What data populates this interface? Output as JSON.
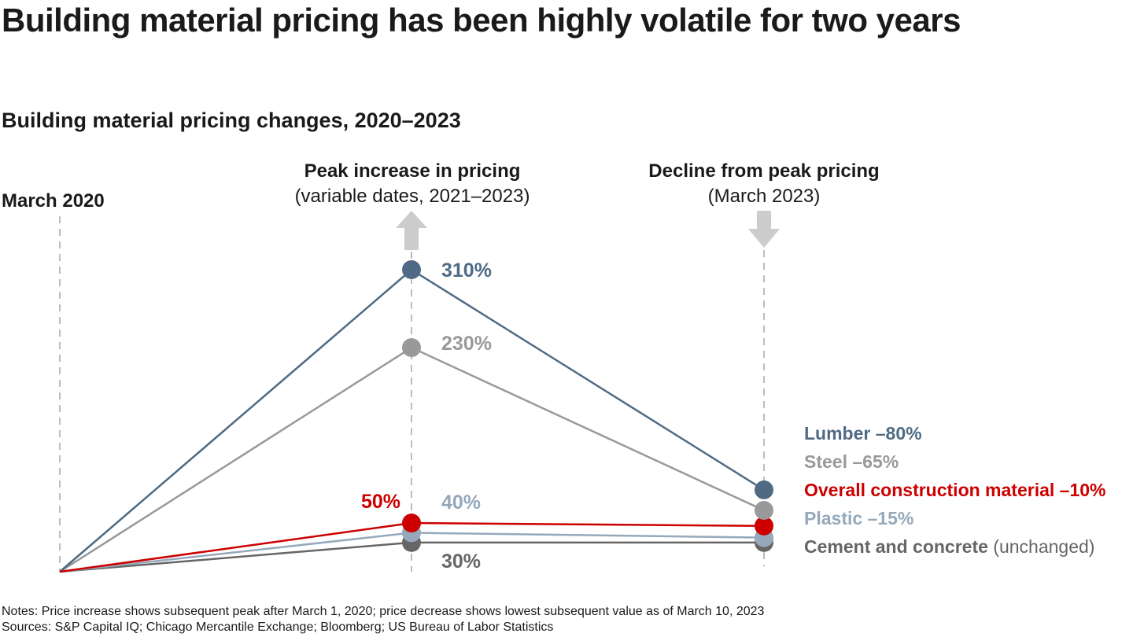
{
  "title": "Building material pricing has been highly volatile for two years",
  "subtitle": "Building material pricing changes, 2020–2023",
  "columns": [
    {
      "heading": "March 2020",
      "sub": ""
    },
    {
      "heading": "Peak increase in pricing",
      "sub": "(variable dates, 2021–2023)"
    },
    {
      "heading": "Decline from peak pricing",
      "sub": "(March 2023)"
    }
  ],
  "notes": "Notes: Price increase shows subsequent peak after March 1, 2020; price decrease shows lowest subsequent value as of March 10, 2023",
  "sources": "Sources: S&P Capital IQ; Chicago Mercantile Exchange; Bloomberg; US Bureau of Labor Statistics",
  "chart_data": {
    "type": "line",
    "title": "Building material pricing changes, 2020–2023",
    "categories": [
      "March 2020",
      "Peak increase in pricing",
      "Decline from peak pricing"
    ],
    "series": [
      {
        "name": "Lumber",
        "color": "#4f6a85",
        "values": [
          0,
          310,
          84
        ],
        "peak_label": "310%",
        "end_label": "Lumber",
        "end_change": "–80%"
      },
      {
        "name": "Steel",
        "color": "#999999",
        "values": [
          0,
          230,
          63
        ],
        "peak_label": "230%",
        "end_label": "Steel",
        "end_change": "–65%"
      },
      {
        "name": "Overall construction material",
        "color": "#cc0000",
        "values": [
          0,
          50,
          47
        ],
        "peak_label": "50%",
        "end_label": "Overall construction material",
        "end_change": "–10%"
      },
      {
        "name": "Plastic",
        "color": "#95a9bb",
        "values": [
          0,
          40,
          35
        ],
        "peak_label": "40%",
        "end_label": "Plastic",
        "end_change": "–15%"
      },
      {
        "name": "Cement and concrete",
        "color": "#666666",
        "values": [
          0,
          30,
          30
        ],
        "peak_label": "30%",
        "end_label": "Cement and concrete",
        "end_change": "(unchanged)"
      }
    ],
    "ylabel": "",
    "xlabel": "",
    "grid": false
  }
}
